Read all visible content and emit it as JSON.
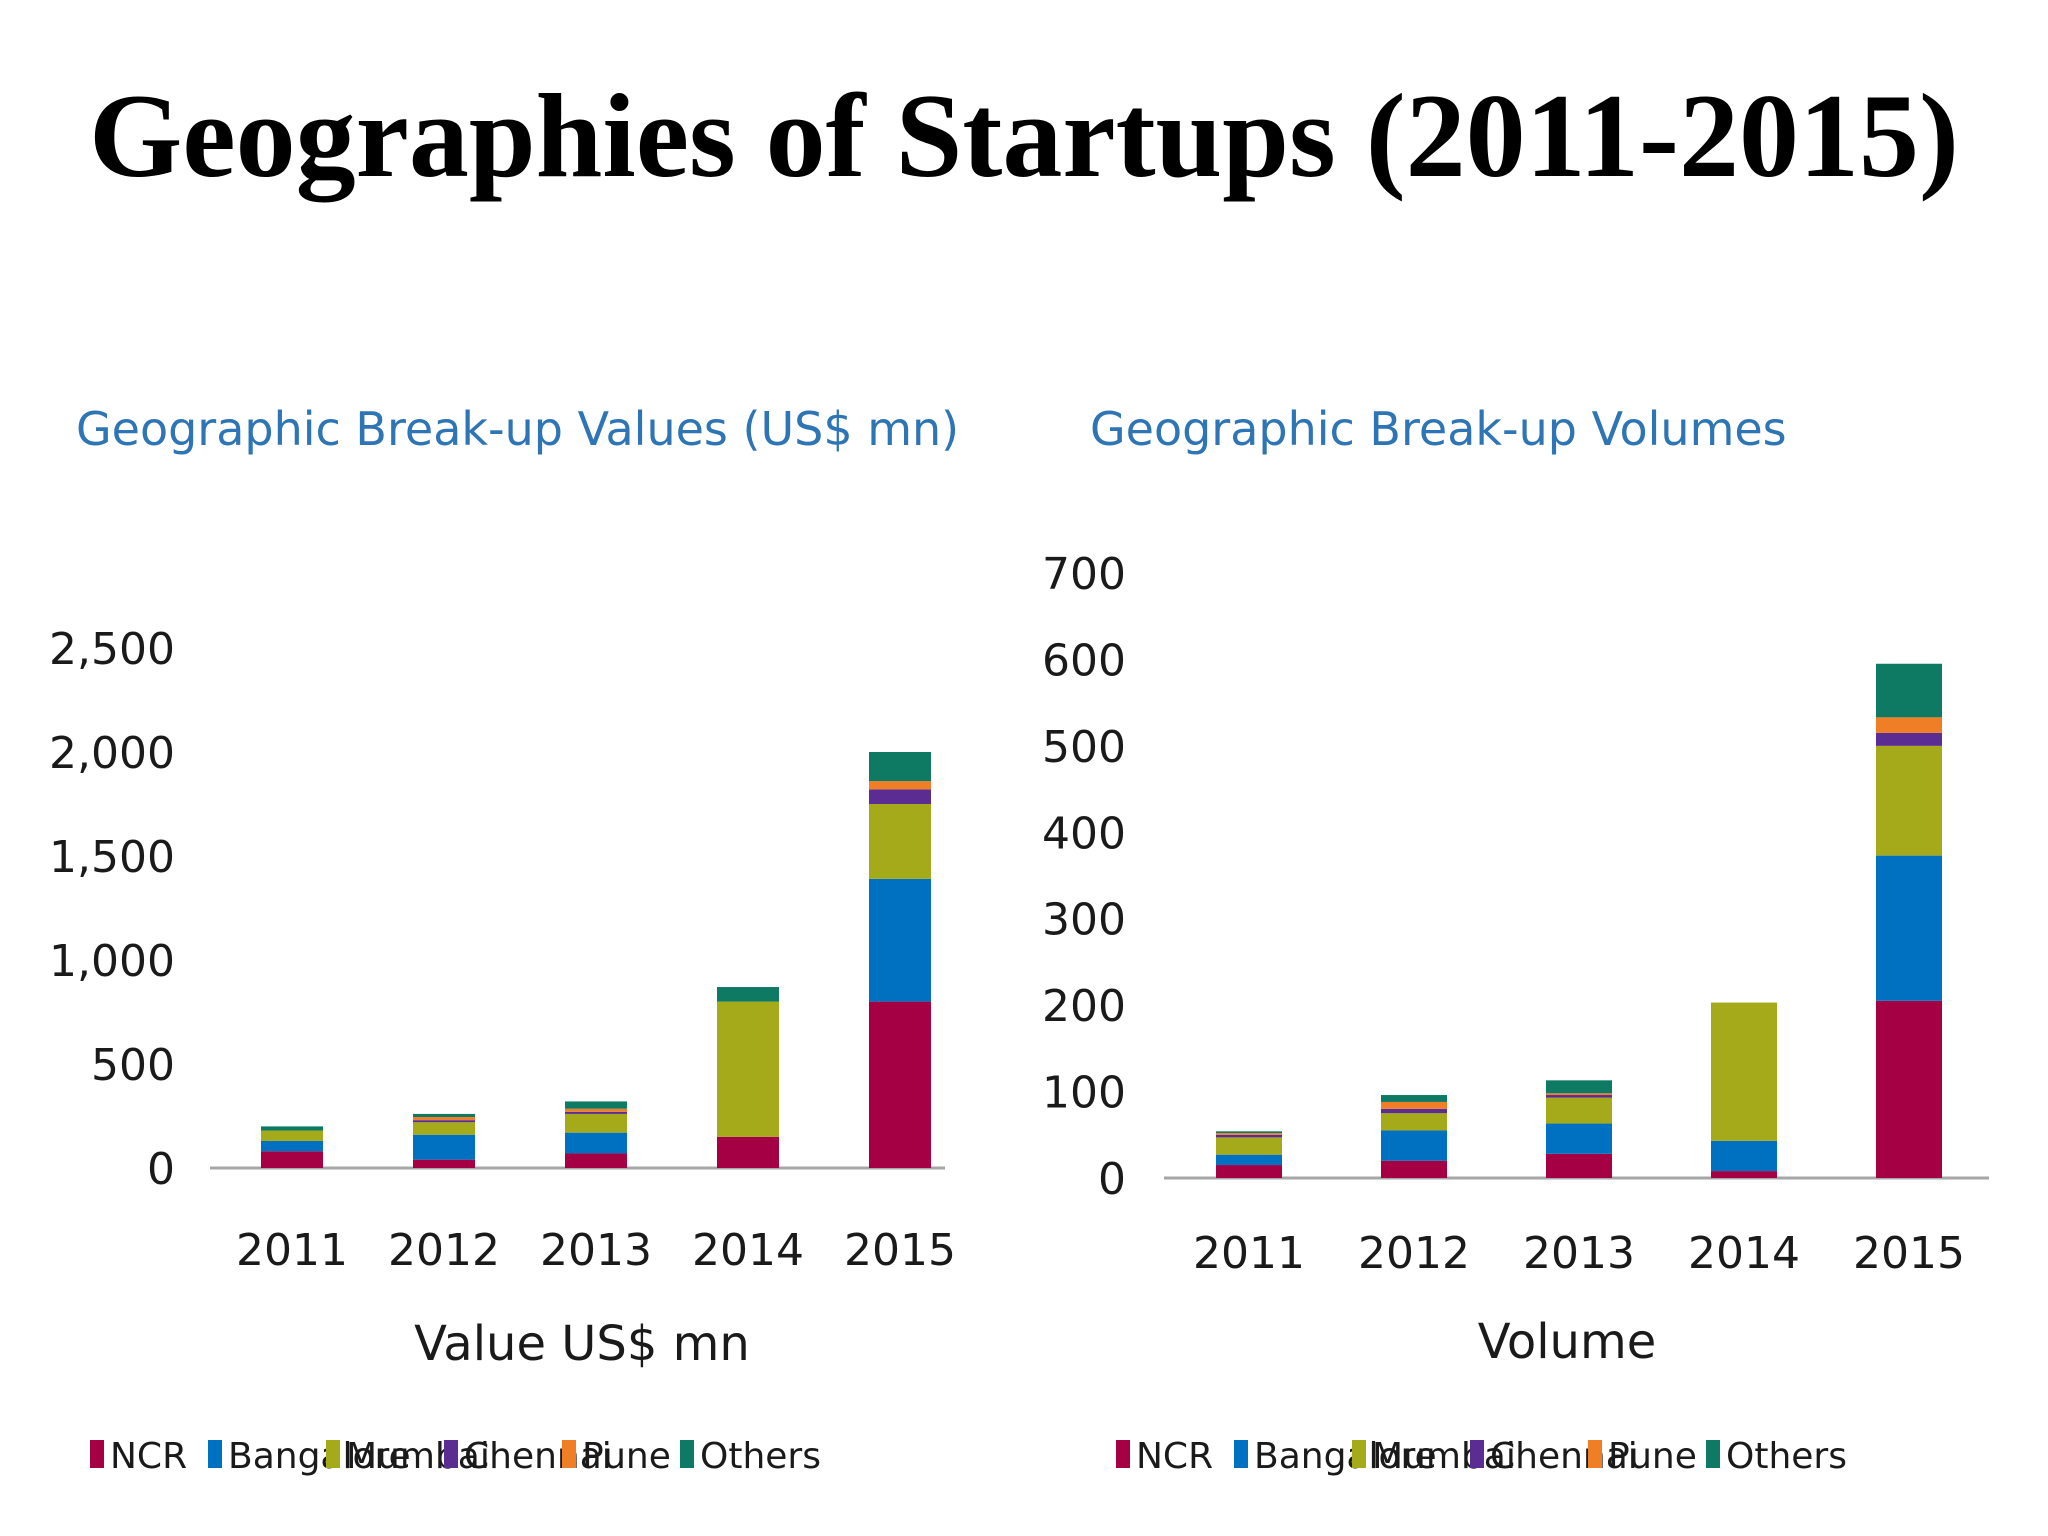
{
  "page_title": "Geographies of Startups (2011-2015)",
  "colors": {
    "NCR": "#A50044",
    "Bangalore": "#0070C0",
    "Mumbai": "#A4AA1A",
    "Chennai": "#5B2C91",
    "Pune": "#F07E26",
    "Others": "#0E7A63",
    "title_blue": "#2E75B6",
    "axis": "#a6a6a6"
  },
  "chart_data": [
    {
      "type": "bar",
      "stacked": true,
      "title": "Geographic Break-up Values (US$ mn)",
      "xlabel": "Value US$ mn",
      "ylabel": "",
      "categories": [
        "2011",
        "2012",
        "2013",
        "2014",
        "2015"
      ],
      "yticks": [
        "0",
        "500",
        "1,000",
        "1,500",
        "2,000",
        "2,500"
      ],
      "ylim": [
        0,
        2500
      ],
      "legend_position": "bottom",
      "series": [
        {
          "name": "NCR",
          "values": [
            80,
            40,
            70,
            150,
            800
          ]
        },
        {
          "name": "Bangalore",
          "values": [
            50,
            120,
            100,
            0,
            590
          ]
        },
        {
          "name": "Mumbai",
          "values": [
            50,
            60,
            90,
            650,
            360
          ]
        },
        {
          "name": "Chennai",
          "values": [
            0,
            10,
            10,
            0,
            70
          ]
        },
        {
          "name": "Pune",
          "values": [
            0,
            15,
            15,
            0,
            40
          ]
        },
        {
          "name": "Others",
          "values": [
            20,
            15,
            35,
            70,
            140
          ]
        }
      ]
    },
    {
      "type": "bar",
      "stacked": true,
      "title": "Geographic Break-up Volumes",
      "xlabel": "Volume",
      "ylabel": "",
      "categories": [
        "2011",
        "2012",
        "2013",
        "2014",
        "2015"
      ],
      "yticks": [
        "0",
        "100",
        "200",
        "300",
        "400",
        "500",
        "600",
        "700"
      ],
      "ylim": [
        0,
        700
      ],
      "legend_position": "bottom",
      "series": [
        {
          "name": "NCR",
          "values": [
            15,
            20,
            28,
            8,
            205
          ]
        },
        {
          "name": "Bangalore",
          "values": [
            12,
            35,
            35,
            35,
            168
          ]
        },
        {
          "name": "Mumbai",
          "values": [
            20,
            20,
            30,
            160,
            127
          ]
        },
        {
          "name": "Chennai",
          "values": [
            3,
            5,
            3,
            0,
            15
          ]
        },
        {
          "name": "Pune",
          "values": [
            2,
            8,
            2,
            0,
            18
          ]
        },
        {
          "name": "Others",
          "values": [
            2,
            8,
            15,
            0,
            62
          ]
        }
      ]
    }
  ]
}
